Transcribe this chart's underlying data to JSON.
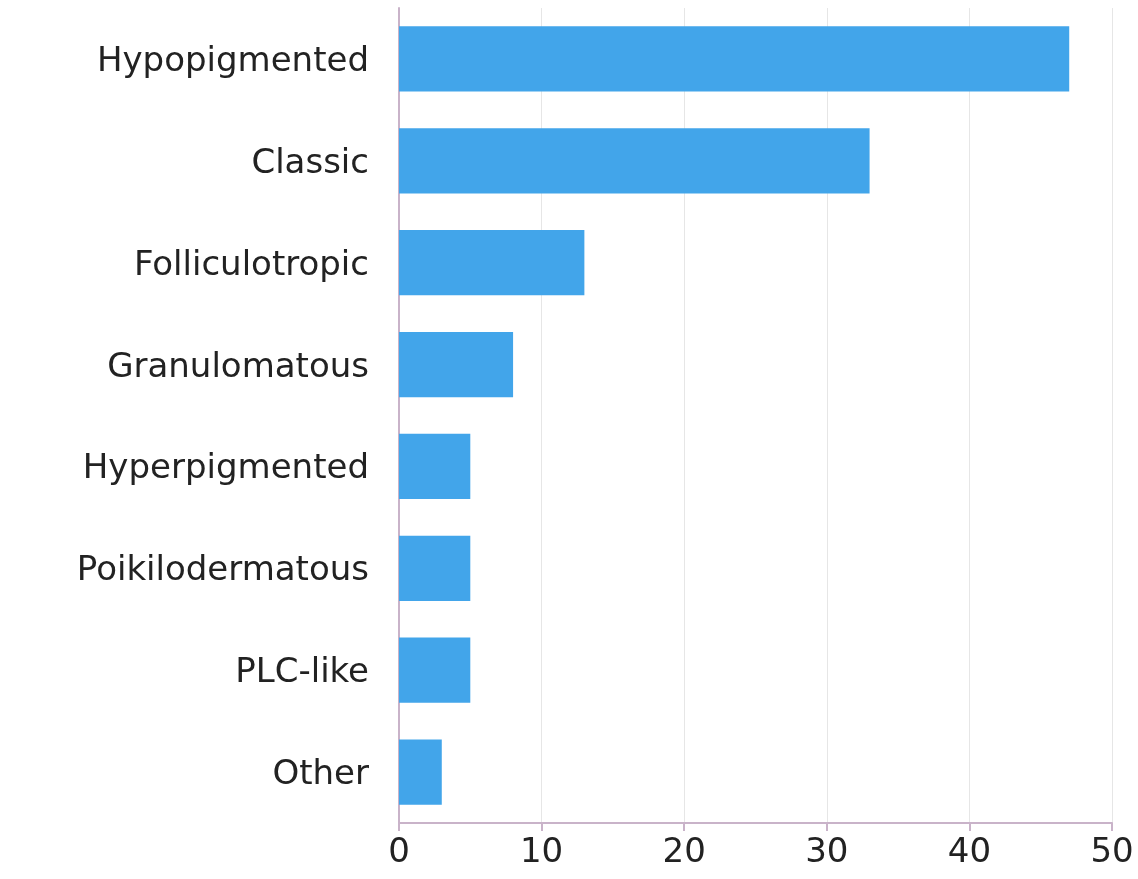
{
  "chart_data": {
    "type": "bar",
    "orientation": "horizontal",
    "categories": [
      "Hypopigmented",
      "Classic",
      "Folliculotropic",
      "Granulomatous",
      "Hyperpigmented",
      "Poikilodermatous",
      "PLC-like",
      "Other"
    ],
    "values": [
      47,
      33,
      13,
      8,
      5,
      5,
      5,
      3
    ],
    "color": "#42a5ea",
    "xlim": [
      0,
      50
    ],
    "xticks": [
      0,
      10,
      20,
      30,
      40,
      50
    ],
    "grid": "x"
  }
}
